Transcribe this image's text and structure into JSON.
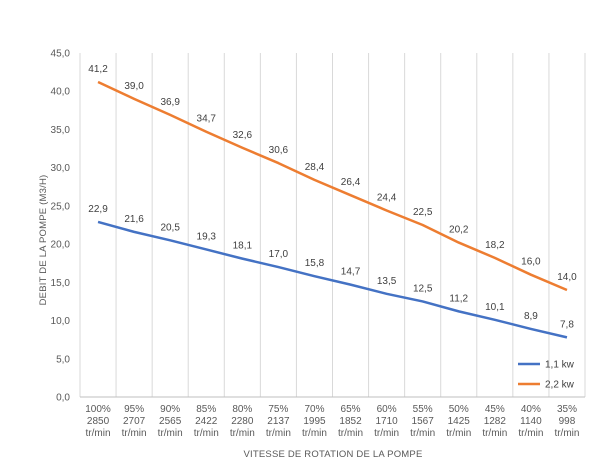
{
  "chart_data": {
    "type": "line",
    "xlabel": "VITESSE DE ROTATION DE LA POMPE",
    "ylabel": "DEBIT DE LA POMPE (M3/H)",
    "ylim": [
      0,
      45
    ],
    "yticks": [
      "0,0",
      "5,0",
      "10,0",
      "15,0",
      "20,0",
      "25,0",
      "30,0",
      "35,0",
      "40,0",
      "45,0"
    ],
    "grid": "vertical",
    "legend_position": "bottom-right",
    "categories": [
      [
        "100%",
        "2850",
        "tr/min"
      ],
      [
        "95%",
        "2707",
        "tr/min"
      ],
      [
        "90%",
        "2565",
        "tr/min"
      ],
      [
        "85%",
        "2422",
        "tr/min"
      ],
      [
        "80%",
        "2280",
        "tr/min"
      ],
      [
        "75%",
        "2137",
        "tr/min"
      ],
      [
        "70%",
        "1995",
        "tr/min"
      ],
      [
        "65%",
        "1852",
        "tr/min"
      ],
      [
        "60%",
        "1710",
        "tr/min"
      ],
      [
        "55%",
        "1567",
        "tr/min"
      ],
      [
        "50%",
        "1425",
        "tr/min"
      ],
      [
        "45%",
        "1282",
        "tr/min"
      ],
      [
        "40%",
        "1140",
        "tr/min"
      ],
      [
        "35%",
        "998",
        "tr/min"
      ]
    ],
    "series": [
      {
        "name": "1,1 kw",
        "color": "#4472C4",
        "values": [
          22.9,
          21.6,
          20.5,
          19.3,
          18.1,
          17.0,
          15.8,
          14.7,
          13.5,
          12.5,
          11.2,
          10.1,
          8.9,
          7.8
        ],
        "labels": [
          "22,9",
          "21,6",
          "20,5",
          "19,3",
          "18,1",
          "17,0",
          "15,8",
          "14,7",
          "13,5",
          "12,5",
          "11,2",
          "10,1",
          "8,9",
          "7,8"
        ]
      },
      {
        "name": "2,2 kw",
        "color": "#ED7D31",
        "values": [
          41.2,
          39.0,
          36.9,
          34.7,
          32.6,
          30.6,
          28.4,
          26.4,
          24.4,
          22.5,
          20.2,
          18.2,
          16.0,
          14.0
        ],
        "labels": [
          "41,2",
          "39,0",
          "36,9",
          "34,7",
          "32,6",
          "30,6",
          "28,4",
          "26,4",
          "24,4",
          "22,5",
          "20,2",
          "18,2",
          "16,0",
          "14,0"
        ]
      }
    ]
  }
}
